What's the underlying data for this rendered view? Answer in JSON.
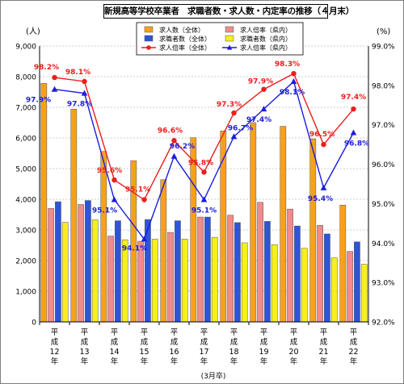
{
  "chart_data": {
    "type": "bar",
    "title": "新規高等学校卒業者　求職者数・求人数・内定率の推移（４月末）",
    "y_left_unit": "(人)",
    "y_right_unit": "(%)",
    "xlabel": "(3月卒)",
    "categories": [
      "平成12年",
      "平成13年",
      "平成14年",
      "平成15年",
      "平成16年",
      "平成17年",
      "平成18年",
      "平成19年",
      "平成20年",
      "平成21年",
      "平成22年"
    ],
    "y_left_ticks": [
      "0",
      "1,000",
      "2,000",
      "3,000",
      "4,000",
      "5,000",
      "6,000",
      "7,000",
      "8,000",
      "9,000"
    ],
    "y_right_ticks": [
      "92.0%",
      "93.0%",
      "94.0%",
      "95.0%",
      "96.0%",
      "97.0%",
      "98.0%",
      "99.0%"
    ],
    "ylim_left": [
      0,
      9000
    ],
    "ylim_right": [
      92.0,
      99.0
    ],
    "grid": true,
    "legend_position": "top",
    "series": [
      {
        "name": "求人数（全体）",
        "kind": "bar",
        "axis": "left",
        "color": "#f7a11a",
        "values": [
          7780,
          6940,
          5560,
          5260,
          4640,
          6010,
          6230,
          6500,
          6380,
          5970,
          3810
        ]
      },
      {
        "name": "求人倍率（県内）",
        "kind": "bar",
        "axis": "left",
        "color": "#f08c8c",
        "values": [
          3700,
          3830,
          2800,
          2630,
          2920,
          3420,
          3480,
          3900,
          3680,
          3150,
          2300
        ]
      },
      {
        "name": "求職者数（全体）",
        "kind": "bar",
        "axis": "left",
        "color": "#2e55d8",
        "values": [
          3920,
          3960,
          3300,
          3340,
          3300,
          3420,
          3240,
          3280,
          3130,
          2870,
          2610
        ]
      },
      {
        "name": "求職者数（県内）",
        "kind": "bar",
        "axis": "left",
        "color": "#f7f01a",
        "values": [
          3250,
          3330,
          2680,
          2700,
          2700,
          2760,
          2580,
          2520,
          2400,
          2090,
          1880
        ]
      },
      {
        "name": "求人倍率（全体）",
        "kind": "line",
        "axis": "right",
        "color": "#ee1c1c",
        "marker": "circle",
        "values": [
          98.2,
          98.1,
          95.6,
          95.1,
          96.6,
          95.8,
          97.3,
          97.9,
          98.3,
          96.5,
          97.4
        ],
        "labels": [
          "98.2%",
          "98.1%",
          "95.6%",
          "95.1%",
          "96.6%",
          "95.8%",
          "97.3%",
          "97.9%",
          "98.3%",
          "96.5%",
          "97.4%"
        ]
      },
      {
        "name": "求人倍率（県内）",
        "kind": "line",
        "axis": "right",
        "color": "#1c1cdd",
        "marker": "triangle",
        "values": [
          97.9,
          97.8,
          95.1,
          94.1,
          96.2,
          95.1,
          96.7,
          97.4,
          98.1,
          95.4,
          96.8
        ],
        "labels": [
          "97.9%",
          "97.8%",
          "95.1%",
          "94.1%",
          "96.2%",
          "95.1%",
          "96.7%",
          "97.4%",
          "98.1%",
          "95.4%",
          "96.8%"
        ]
      }
    ],
    "legend_order": [
      "求人数（全体）",
      "求人倍率（県内）",
      "求職者数（全体）",
      "求職者数（県内）",
      "求人倍率（全体）",
      "求人倍率（県内）"
    ]
  }
}
